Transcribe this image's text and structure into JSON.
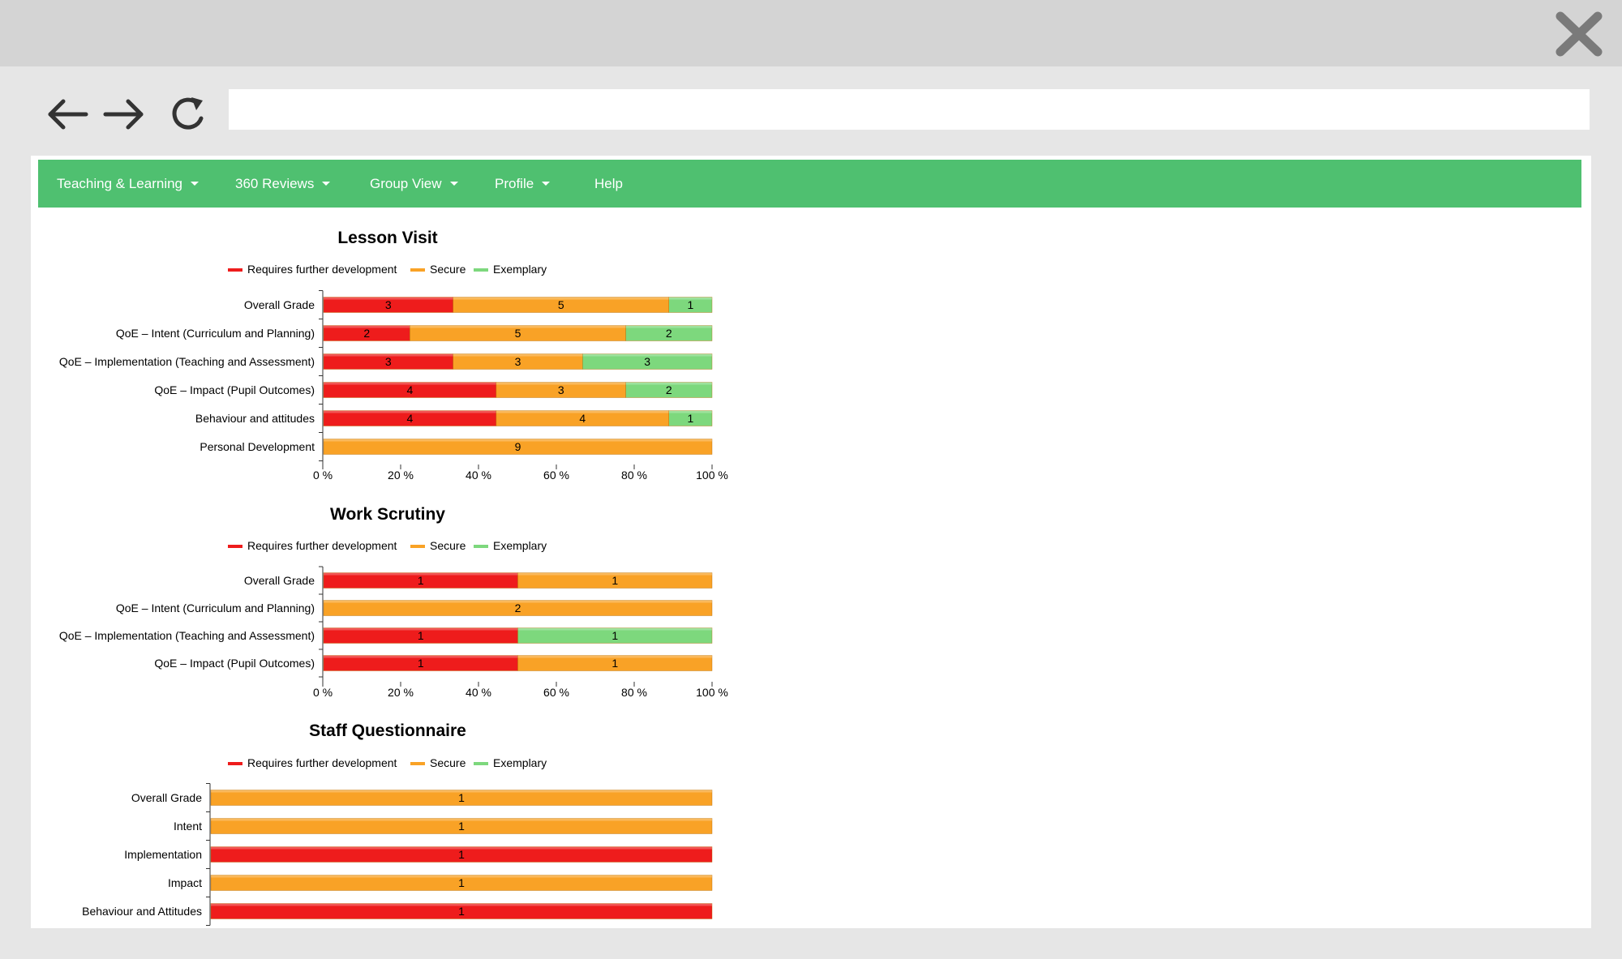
{
  "browser": {
    "back_icon": "arrow-left-icon",
    "forward_icon": "arrow-right-icon",
    "reload_icon": "reload-icon",
    "close_icon": "close-icon",
    "address_value": ""
  },
  "menu": {
    "items": [
      {
        "label": "Teaching & Learning",
        "dropdown": true
      },
      {
        "label": "360 Reviews",
        "dropdown": true
      },
      {
        "label": "Group View",
        "dropdown": true
      },
      {
        "label": "Profile",
        "dropdown": true
      },
      {
        "label": "Help",
        "dropdown": false
      }
    ]
  },
  "colors": {
    "menu_bg": "#4fc070",
    "requires": "#ee1c1c",
    "secure": "#f9a226",
    "exemplary": "#7dd87d"
  },
  "chart_data": [
    {
      "type": "bar",
      "stacked": "percent",
      "orientation": "horizontal",
      "title": "Lesson Visit",
      "legend": [
        "Requires further development",
        "Secure",
        "Exemplary"
      ],
      "legend_position": "top",
      "categories": [
        "Overall Grade",
        "QoE – Intent (Curriculum and Planning)",
        "QoE – Implementation (Teaching and Assessment)",
        "QoE – Impact (Pupil Outcomes)",
        "Behaviour and attitudes",
        "Personal Development"
      ],
      "series": [
        {
          "name": "Requires further development",
          "values": [
            3,
            2,
            3,
            4,
            4,
            0
          ]
        },
        {
          "name": "Secure",
          "values": [
            5,
            5,
            3,
            3,
            4,
            9
          ]
        },
        {
          "name": "Exemplary",
          "values": [
            1,
            2,
            3,
            2,
            1,
            0
          ]
        }
      ],
      "xticks": [
        "0 %",
        "20 %",
        "40 %",
        "60 %",
        "80 %",
        "100 %"
      ]
    },
    {
      "type": "bar",
      "stacked": "percent",
      "orientation": "horizontal",
      "title": "Work Scrutiny",
      "legend": [
        "Requires further development",
        "Secure",
        "Exemplary"
      ],
      "legend_position": "top",
      "categories": [
        "Overall Grade",
        "QoE – Intent (Curriculum and Planning)",
        "QoE – Implementation (Teaching and Assessment)",
        "QoE – Impact (Pupil Outcomes)"
      ],
      "series": [
        {
          "name": "Requires further development",
          "values": [
            1,
            0,
            1,
            1
          ]
        },
        {
          "name": "Secure",
          "values": [
            1,
            2,
            0,
            1
          ]
        },
        {
          "name": "Exemplary",
          "values": [
            0,
            0,
            1,
            0
          ]
        }
      ],
      "xticks": [
        "0 %",
        "20 %",
        "40 %",
        "60 %",
        "80 %",
        "100 %"
      ]
    },
    {
      "type": "bar",
      "stacked": "percent",
      "orientation": "horizontal",
      "title": "Staff Questionnaire",
      "legend": [
        "Requires further development",
        "Secure",
        "Exemplary"
      ],
      "legend_position": "top",
      "categories": [
        "Overall Grade",
        "Intent",
        "Implementation",
        "Impact",
        "Behaviour and Attitudes"
      ],
      "series": [
        {
          "name": "Requires further development",
          "values": [
            0,
            0,
            1,
            0,
            1
          ]
        },
        {
          "name": "Secure",
          "values": [
            1,
            1,
            0,
            1,
            0
          ]
        },
        {
          "name": "Exemplary",
          "values": [
            0,
            0,
            0,
            0,
            0
          ]
        }
      ],
      "xticks": []
    }
  ]
}
